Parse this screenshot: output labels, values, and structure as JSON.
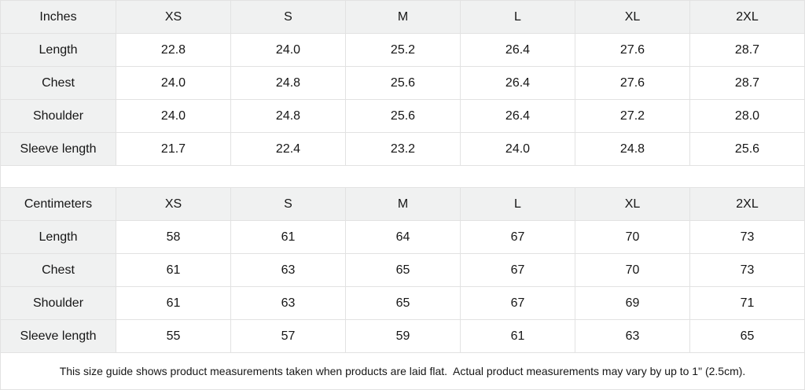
{
  "tables": [
    {
      "unit_label": "Inches",
      "sizes": [
        "XS",
        "S",
        "M",
        "L",
        "XL",
        "2XL"
      ],
      "rows": [
        {
          "label": "Length",
          "values": [
            "22.8",
            "24.0",
            "25.2",
            "26.4",
            "27.6",
            "28.7"
          ]
        },
        {
          "label": "Chest",
          "values": [
            "24.0",
            "24.8",
            "25.6",
            "26.4",
            "27.6",
            "28.7"
          ]
        },
        {
          "label": "Shoulder",
          "values": [
            "24.0",
            "24.8",
            "25.6",
            "26.4",
            "27.2",
            "28.0"
          ]
        },
        {
          "label": "Sleeve length",
          "values": [
            "21.7",
            "22.4",
            "23.2",
            "24.0",
            "24.8",
            "25.6"
          ]
        }
      ]
    },
    {
      "unit_label": "Centimeters",
      "sizes": [
        "XS",
        "S",
        "M",
        "L",
        "XL",
        "2XL"
      ],
      "rows": [
        {
          "label": "Length",
          "values": [
            "58",
            "61",
            "64",
            "67",
            "70",
            "73"
          ]
        },
        {
          "label": "Chest",
          "values": [
            "61",
            "63",
            "65",
            "67",
            "70",
            "73"
          ]
        },
        {
          "label": "Shoulder",
          "values": [
            "61",
            "63",
            "65",
            "67",
            "69",
            "71"
          ]
        },
        {
          "label": "Sleeve length",
          "values": [
            "55",
            "57",
            "59",
            "61",
            "63",
            "65"
          ]
        }
      ]
    }
  ],
  "footer": {
    "note": "This size guide shows product measurements taken when products are laid flat.  Actual product measurements may vary by up to 1\" (2.5cm)."
  },
  "colors": {
    "label_cell_bg": "#f0f1f1",
    "border": "#e2e2e2",
    "text": "#161616",
    "data_cell_bg": "#ffffff"
  }
}
